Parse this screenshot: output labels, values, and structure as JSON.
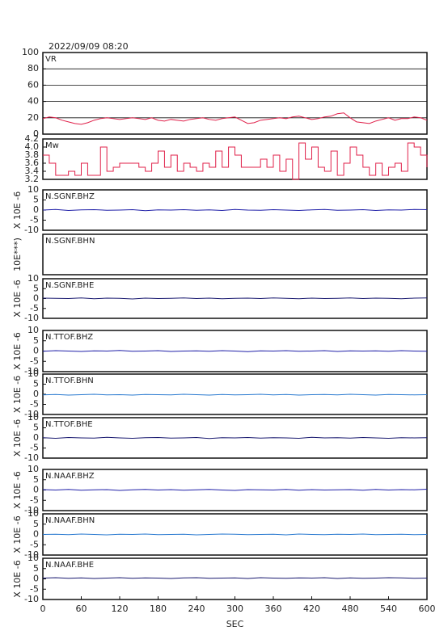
{
  "chart_data": [
    {
      "type": "line",
      "title": "2022/09/09 08:20",
      "label": "VR",
      "color": "#e0204a",
      "grid": true,
      "xlim": [
        0,
        600
      ],
      "ylim": [
        0,
        100
      ],
      "yticks": [
        0,
        20,
        40,
        60,
        80,
        100
      ],
      "x": [
        0,
        10,
        20,
        30,
        40,
        50,
        60,
        70,
        80,
        90,
        100,
        110,
        120,
        130,
        140,
        150,
        160,
        170,
        180,
        190,
        200,
        210,
        220,
        230,
        240,
        250,
        260,
        270,
        280,
        290,
        300,
        310,
        320,
        330,
        340,
        350,
        360,
        370,
        380,
        390,
        400,
        410,
        420,
        430,
        440,
        450,
        460,
        470,
        480,
        490,
        500,
        510,
        520,
        530,
        540,
        550,
        560,
        570,
        580,
        590,
        600
      ],
      "values": [
        19,
        21,
        20,
        17,
        15,
        13,
        12,
        14,
        17,
        19,
        20,
        19,
        18,
        19,
        20,
        19,
        18,
        20,
        17,
        16,
        18,
        17,
        16,
        18,
        19,
        20,
        18,
        17,
        19,
        20,
        21,
        17,
        13,
        14,
        17,
        18,
        19,
        20,
        19,
        21,
        22,
        20,
        18,
        19,
        21,
        22,
        25,
        26,
        20,
        15,
        14,
        13,
        16,
        18,
        20,
        17,
        19,
        19,
        21,
        20,
        17
      ]
    },
    {
      "type": "step",
      "label": "Mw",
      "color": "#e0204a",
      "xlim": [
        0,
        600
      ],
      "ylim": [
        3.2,
        4.2
      ],
      "yticks": [
        3.2,
        3.4,
        3.6,
        3.8,
        {
          "value": 4,
          "label": "4.0"
        },
        4.2
      ],
      "x": [
        0,
        10,
        20,
        30,
        40,
        50,
        60,
        70,
        80,
        90,
        100,
        110,
        120,
        130,
        140,
        150,
        160,
        170,
        180,
        190,
        200,
        210,
        220,
        230,
        240,
        250,
        260,
        270,
        280,
        290,
        300,
        310,
        320,
        330,
        340,
        350,
        360,
        370,
        380,
        390,
        400,
        410,
        420,
        430,
        440,
        450,
        460,
        470,
        480,
        490,
        500,
        510,
        520,
        530,
        540,
        550,
        560,
        570,
        580,
        590,
        600
      ],
      "values": [
        3.8,
        3.6,
        3.3,
        3.3,
        3.4,
        3.3,
        3.6,
        3.3,
        3.3,
        4.0,
        3.4,
        3.5,
        3.6,
        3.6,
        3.6,
        3.5,
        3.4,
        3.6,
        3.9,
        3.5,
        3.8,
        3.4,
        3.6,
        3.5,
        3.4,
        3.6,
        3.5,
        3.9,
        3.5,
        4.0,
        3.8,
        3.5,
        3.5,
        3.5,
        3.7,
        3.5,
        3.8,
        3.4,
        3.7,
        3.2,
        4.1,
        3.7,
        4.0,
        3.5,
        3.4,
        3.9,
        3.3,
        3.6,
        4.0,
        3.8,
        3.5,
        3.3,
        3.6,
        3.3,
        3.5,
        3.6,
        3.4,
        4.1,
        4.0,
        3.8,
        3.5
      ]
    },
    {
      "type": "line",
      "label": "N.SGNF.BHZ",
      "ylabel": "X 10E -6",
      "color": "#2020a8",
      "xlim": [
        0,
        600
      ],
      "ylim": [
        -10,
        10
      ],
      "yticks": [
        -10,
        -5,
        0,
        5,
        10
      ],
      "x": [
        0,
        20,
        40,
        60,
        80,
        100,
        120,
        140,
        160,
        180,
        200,
        220,
        240,
        260,
        280,
        300,
        320,
        340,
        360,
        380,
        400,
        420,
        440,
        460,
        480,
        500,
        520,
        540,
        560,
        580,
        600
      ],
      "values": [
        0,
        0.3,
        -0.2,
        0.1,
        0.2,
        -0.1,
        0,
        0.2,
        -0.3,
        0.1,
        0,
        0.2,
        -0.1,
        0.1,
        -0.2,
        0.3,
        0,
        -0.1,
        0.2,
        0,
        -0.2,
        0.1,
        0.3,
        -0.1,
        0,
        0.2,
        -0.2,
        0.1,
        0,
        0.3,
        0.2
      ]
    },
    {
      "type": "empty",
      "label": "N.SGNF.BHN",
      "ylabel": "10E***)",
      "xlim": [
        0,
        600
      ]
    },
    {
      "type": "line",
      "label": "N.SGNF.BHE",
      "ylabel": "X 10E -6",
      "color": "#1a1a70",
      "xlim": [
        0,
        600
      ],
      "ylim": [
        -10,
        10
      ],
      "yticks": [
        -10,
        -5,
        0,
        5,
        10
      ],
      "x": [
        0,
        20,
        40,
        60,
        80,
        100,
        120,
        140,
        160,
        180,
        200,
        220,
        240,
        260,
        280,
        300,
        320,
        340,
        360,
        380,
        400,
        420,
        440,
        460,
        480,
        500,
        520,
        540,
        560,
        580,
        600
      ],
      "values": [
        0.2,
        0.1,
        0,
        0.3,
        -0.1,
        0.2,
        0.1,
        -0.2,
        0.2,
        0,
        0.1,
        0.3,
        0,
        0.2,
        -0.1,
        0.1,
        0.2,
        0,
        0.3,
        0.1,
        -0.1,
        0.2,
        0,
        0.1,
        0.3,
        0,
        0.2,
        0.1,
        -0.1,
        0.2,
        0.3
      ]
    },
    {
      "type": "line",
      "label": "N.TTOF.BHZ",
      "ylabel": "X 10E -6",
      "color": "#2020a8",
      "xlim": [
        0,
        600
      ],
      "ylim": [
        -10,
        10
      ],
      "yticks": [
        -10,
        -5,
        0,
        5,
        10
      ],
      "x": [
        0,
        20,
        40,
        60,
        80,
        100,
        120,
        140,
        160,
        180,
        200,
        220,
        240,
        260,
        280,
        300,
        320,
        340,
        360,
        380,
        400,
        420,
        440,
        460,
        480,
        500,
        520,
        540,
        560,
        580,
        600
      ],
      "values": [
        -0.1,
        0.2,
        0,
        -0.2,
        0.1,
        0,
        0.3,
        -0.1,
        0,
        0.2,
        -0.2,
        0,
        0.1,
        -0.1,
        0.2,
        0,
        -0.3,
        0.1,
        0,
        0.2,
        -0.1,
        0,
        0.2,
        -0.2,
        0.1,
        0,
        0.1,
        -0.1,
        0.2,
        0,
        -0.1
      ]
    },
    {
      "type": "line",
      "label": "N.TTOF.BHN",
      "ylabel": "X 10E -6",
      "color": "#2a7ad0",
      "xlim": [
        0,
        600
      ],
      "ylim": [
        -10,
        10
      ],
      "yticks": [
        -10,
        -5,
        0,
        5,
        10
      ],
      "x": [
        0,
        20,
        40,
        60,
        80,
        100,
        120,
        140,
        160,
        180,
        200,
        220,
        240,
        260,
        280,
        300,
        320,
        340,
        360,
        380,
        400,
        420,
        440,
        460,
        480,
        500,
        520,
        540,
        560,
        580,
        600
      ],
      "values": [
        -0.3,
        -0.1,
        -0.4,
        -0.2,
        0,
        -0.3,
        -0.2,
        -0.4,
        -0.1,
        -0.2,
        -0.3,
        0,
        -0.2,
        -0.4,
        -0.1,
        -0.3,
        -0.2,
        0,
        -0.3,
        -0.1,
        -0.4,
        -0.2,
        -0.1,
        -0.3,
        0,
        -0.2,
        -0.4,
        -0.1,
        -0.2,
        -0.3,
        -0.2
      ]
    },
    {
      "type": "line",
      "label": "N.TTOF.BHE",
      "ylabel": "X 10E -6",
      "color": "#1a1a70",
      "xlim": [
        0,
        600
      ],
      "ylim": [
        -10,
        10
      ],
      "yticks": [
        -10,
        -5,
        0,
        5,
        10
      ],
      "x": [
        0,
        20,
        40,
        60,
        80,
        100,
        120,
        140,
        160,
        180,
        200,
        220,
        240,
        260,
        280,
        300,
        320,
        340,
        360,
        380,
        400,
        420,
        440,
        460,
        480,
        500,
        520,
        540,
        560,
        580,
        600
      ],
      "values": [
        0.1,
        -0.2,
        0.2,
        0,
        -0.1,
        0.3,
        0,
        -0.2,
        0.1,
        0.2,
        -0.1,
        0,
        0.2,
        -0.3,
        0.1,
        0,
        0.2,
        -0.1,
        0.1,
        0,
        -0.2,
        0.3,
        0,
        0.1,
        -0.1,
        0.2,
        0,
        -0.2,
        0.1,
        0,
        0.1
      ]
    },
    {
      "type": "line",
      "label": "N.NAAF.BHZ",
      "ylabel": "X 10E -6",
      "color": "#2020a8",
      "xlim": [
        0,
        600
      ],
      "ylim": [
        -10,
        10
      ],
      "yticks": [
        -10,
        -5,
        0,
        5,
        10
      ],
      "x": [
        0,
        20,
        40,
        60,
        80,
        100,
        120,
        140,
        160,
        180,
        200,
        220,
        240,
        260,
        280,
        300,
        320,
        340,
        360,
        380,
        400,
        420,
        440,
        460,
        480,
        500,
        520,
        540,
        560,
        580,
        600
      ],
      "values": [
        0.2,
        0,
        0.3,
        -0.1,
        0.1,
        0.2,
        -0.2,
        0.1,
        0.3,
        0,
        0.2,
        -0.1,
        0.1,
        0.3,
        0,
        -0.2,
        0.2,
        0.1,
        0,
        0.3,
        -0.1,
        0.2,
        0,
        0.1,
        0.2,
        -0.1,
        0.3,
        0,
        0.2,
        0.1,
        0.4
      ]
    },
    {
      "type": "line",
      "label": "N.NAAF.BHN",
      "ylabel": "X 10E -6",
      "color": "#2a7ad0",
      "xlim": [
        0,
        600
      ],
      "ylim": [
        -10,
        10
      ],
      "yticks": [
        -10,
        -5,
        0,
        5,
        10
      ],
      "x": [
        0,
        20,
        40,
        60,
        80,
        100,
        120,
        140,
        160,
        180,
        200,
        220,
        240,
        260,
        280,
        300,
        320,
        340,
        360,
        380,
        400,
        420,
        440,
        460,
        480,
        500,
        520,
        540,
        560,
        580,
        600
      ],
      "values": [
        0,
        0.1,
        -0.1,
        0.2,
        0,
        -0.2,
        0.1,
        0,
        0.2,
        -0.1,
        0,
        0.1,
        -0.2,
        0,
        0.2,
        0.1,
        -0.1,
        0,
        0.1,
        -0.2,
        0.2,
        0,
        -0.1,
        0.1,
        0,
        0.2,
        -0.1,
        0,
        0.1,
        -0.1,
        0
      ]
    },
    {
      "type": "line",
      "label": "N.NAAF.BHE",
      "ylabel": "X 10E -6",
      "color": "#1a1a70",
      "xlabel": "SEC",
      "xlim": [
        0,
        600
      ],
      "ylim": [
        -10,
        10
      ],
      "yticks": [
        -10,
        -5,
        0,
        5,
        10
      ],
      "xticks": [
        0,
        60,
        120,
        180,
        240,
        300,
        360,
        420,
        480,
        540,
        600
      ],
      "x": [
        0,
        20,
        40,
        60,
        80,
        100,
        120,
        140,
        160,
        180,
        200,
        220,
        240,
        260,
        280,
        300,
        320,
        340,
        360,
        380,
        400,
        420,
        440,
        460,
        480,
        500,
        520,
        540,
        560,
        580,
        600
      ],
      "values": [
        0.4,
        0.6,
        0.3,
        0.5,
        0.2,
        0.4,
        0.6,
        0.3,
        0.5,
        0.4,
        0.2,
        0.5,
        0.6,
        0.3,
        0.4,
        0.5,
        0.2,
        0.6,
        0.4,
        0.3,
        0.5,
        0.4,
        0.6,
        0.2,
        0.5,
        0.3,
        0.4,
        0.6,
        0.5,
        0.3,
        0.4
      ]
    }
  ]
}
